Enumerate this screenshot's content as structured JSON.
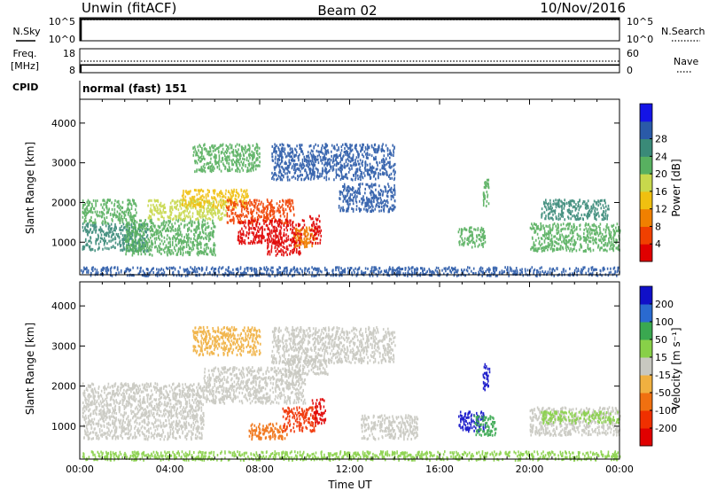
{
  "header": {
    "station": "Unwin (fitACF)",
    "beam": "Beam 02",
    "date": "10/Nov/2016"
  },
  "colors": {
    "power": [
      "#1414e6",
      "#2a5aa8",
      "#3a8a78",
      "#58b060",
      "#c8d84c",
      "#f0c010",
      "#f08000",
      "#f04000",
      "#e00000"
    ],
    "velocity": [
      "#1010c8",
      "#2a6ad0",
      "#3aa850",
      "#88d048",
      "#c8c8c0",
      "#f0b040",
      "#f07010",
      "#f03000",
      "#e00000"
    ],
    "ground_scatter": "#c0c0b8"
  },
  "chart_data": [
    {
      "type": "line",
      "panel": "sky-noise",
      "labels": {
        "left": "N.Sky",
        "right": "N.Search"
      },
      "left_ticks": [
        "10^5",
        "10^0"
      ],
      "right_ticks": [
        "10^5",
        "10^0"
      ],
      "left_scale": "log",
      "series": [
        {
          "style": "solid",
          "values": [
            [
              0,
              1
            ],
            [
              0.05,
              1
            ],
            [
              0.05,
              120000
            ],
            [
              24,
              120000
            ]
          ]
        },
        {
          "style": "dotted",
          "values": [
            [
              0.05,
              90000
            ],
            [
              24,
              90000
            ]
          ]
        }
      ]
    },
    {
      "type": "line",
      "panel": "frequency",
      "labels": {
        "left": "Freq.",
        "left_unit": "[MHz]",
        "right": "Nave"
      },
      "left_ticks": [
        "18",
        "8"
      ],
      "right_ticks": [
        "60",
        "0"
      ],
      "series": [
        {
          "style": "solid",
          "values": [
            [
              0,
              8
            ],
            [
              0.05,
              8
            ],
            [
              0.05,
              11.2
            ],
            [
              24,
              11.2
            ]
          ]
        },
        {
          "style": "dotted",
          "values": [
            [
              0.05,
              30
            ],
            [
              24,
              30
            ]
          ]
        }
      ]
    },
    {
      "type": "text",
      "panel": "cpid",
      "label": "CPID",
      "text": "normal (fast) 151"
    },
    {
      "type": "heatmap",
      "panel": "power",
      "xlabel": "",
      "ylabel": "Slant Range [km]",
      "y_ticks": [
        1000,
        2000,
        3000,
        4000
      ],
      "ylim": [
        180,
        4600
      ],
      "colorbar": {
        "label": "Power [dB]",
        "ticks": [
          4,
          8,
          12,
          16,
          20,
          24,
          28
        ]
      },
      "regions": [
        {
          "t": [
            0.1,
            3.0
          ],
          "r": [
            800,
            1500
          ],
          "level": 2
        },
        {
          "t": [
            0.1,
            2.5
          ],
          "r": [
            1500,
            2100
          ],
          "level": 3
        },
        {
          "t": [
            2.0,
            6.0
          ],
          "r": [
            700,
            1600
          ],
          "level": 3
        },
        {
          "t": [
            3.0,
            6.5
          ],
          "r": [
            1600,
            2100
          ],
          "level": 4
        },
        {
          "t": [
            4.5,
            7.5
          ],
          "r": [
            1900,
            2350
          ],
          "level": 5
        },
        {
          "t": [
            6.5,
            9.5
          ],
          "r": [
            1500,
            2100
          ],
          "level": 7
        },
        {
          "t": [
            7.0,
            10.0
          ],
          "r": [
            1000,
            1600
          ],
          "level": 8
        },
        {
          "t": [
            8.3,
            9.8
          ],
          "r": [
            700,
            1100
          ],
          "level": 8
        },
        {
          "t": [
            9.5,
            10.5
          ],
          "r": [
            900,
            1400
          ],
          "level": 6
        },
        {
          "t": [
            10.2,
            10.7
          ],
          "r": [
            1000,
            1700
          ],
          "level": 8
        },
        {
          "t": [
            5.0,
            8.0
          ],
          "r": [
            2800,
            3500
          ],
          "level": 3
        },
        {
          "t": [
            8.5,
            14.0
          ],
          "r": [
            2600,
            3500
          ],
          "level": 1
        },
        {
          "t": [
            11.5,
            14.0
          ],
          "r": [
            1800,
            2500
          ],
          "level": 1
        },
        {
          "t": [
            16.8,
            18.0
          ],
          "r": [
            900,
            1400
          ],
          "level": 3
        },
        {
          "t": [
            17.9,
            18.2
          ],
          "r": [
            1900,
            2600
          ],
          "level": 3
        },
        {
          "t": [
            20.0,
            24.0
          ],
          "r": [
            800,
            1500
          ],
          "level": 3
        },
        {
          "t": [
            20.5,
            23.5
          ],
          "r": [
            1600,
            2100
          ],
          "level": 2
        },
        {
          "t": [
            0.0,
            24.0
          ],
          "r": [
            180,
            400
          ],
          "level": 1
        }
      ]
    },
    {
      "type": "heatmap",
      "panel": "velocity",
      "xlabel": "Time UT",
      "ylabel": "Slant Range [km]",
      "x_ticks": [
        "00:00",
        "04:00",
        "08:00",
        "12:00",
        "16:00",
        "20:00",
        "00:00"
      ],
      "y_ticks": [
        1000,
        2000,
        3000,
        4000
      ],
      "ylim": [
        180,
        4600
      ],
      "colorbar": {
        "label": "Velocity [m s⁻¹]",
        "ticks": [
          200,
          100,
          50,
          15,
          -15,
          -50,
          -100,
          -200
        ]
      },
      "regions": [
        {
          "t": [
            0.1,
            5.5
          ],
          "r": [
            700,
            2100
          ],
          "level": 4
        },
        {
          "t": [
            5.5,
            10.0
          ],
          "r": [
            1600,
            2500
          ],
          "level": 4
        },
        {
          "t": [
            9.0,
            11.0
          ],
          "r": [
            2300,
            2700
          ],
          "level": 4
        },
        {
          "t": [
            12.5,
            15.0
          ],
          "r": [
            700,
            1300
          ],
          "level": 4
        },
        {
          "t": [
            7.5,
            9.2
          ],
          "r": [
            700,
            1100
          ],
          "level": 6
        },
        {
          "t": [
            9.0,
            10.5
          ],
          "r": [
            900,
            1500
          ],
          "level": 7
        },
        {
          "t": [
            10.3,
            10.9
          ],
          "r": [
            1100,
            1700
          ],
          "level": 8
        },
        {
          "t": [
            5.0,
            8.0
          ],
          "r": [
            2800,
            3500
          ],
          "level": 5
        },
        {
          "t": [
            8.5,
            14.0
          ],
          "r": [
            2600,
            3500
          ],
          "level": 4
        },
        {
          "t": [
            16.8,
            18.0
          ],
          "r": [
            900,
            1400
          ],
          "level": 0
        },
        {
          "t": [
            17.9,
            18.2
          ],
          "r": [
            1900,
            2600
          ],
          "level": 0
        },
        {
          "t": [
            17.5,
            18.5
          ],
          "r": [
            800,
            1300
          ],
          "level": 2
        },
        {
          "t": [
            20.0,
            24.0
          ],
          "r": [
            800,
            1500
          ],
          "level": 4
        },
        {
          "t": [
            20.5,
            24.0
          ],
          "r": [
            1100,
            1400
          ],
          "level": 3
        },
        {
          "t": [
            0.0,
            24.0
          ],
          "r": [
            180,
            400
          ],
          "level": 3
        }
      ]
    }
  ]
}
